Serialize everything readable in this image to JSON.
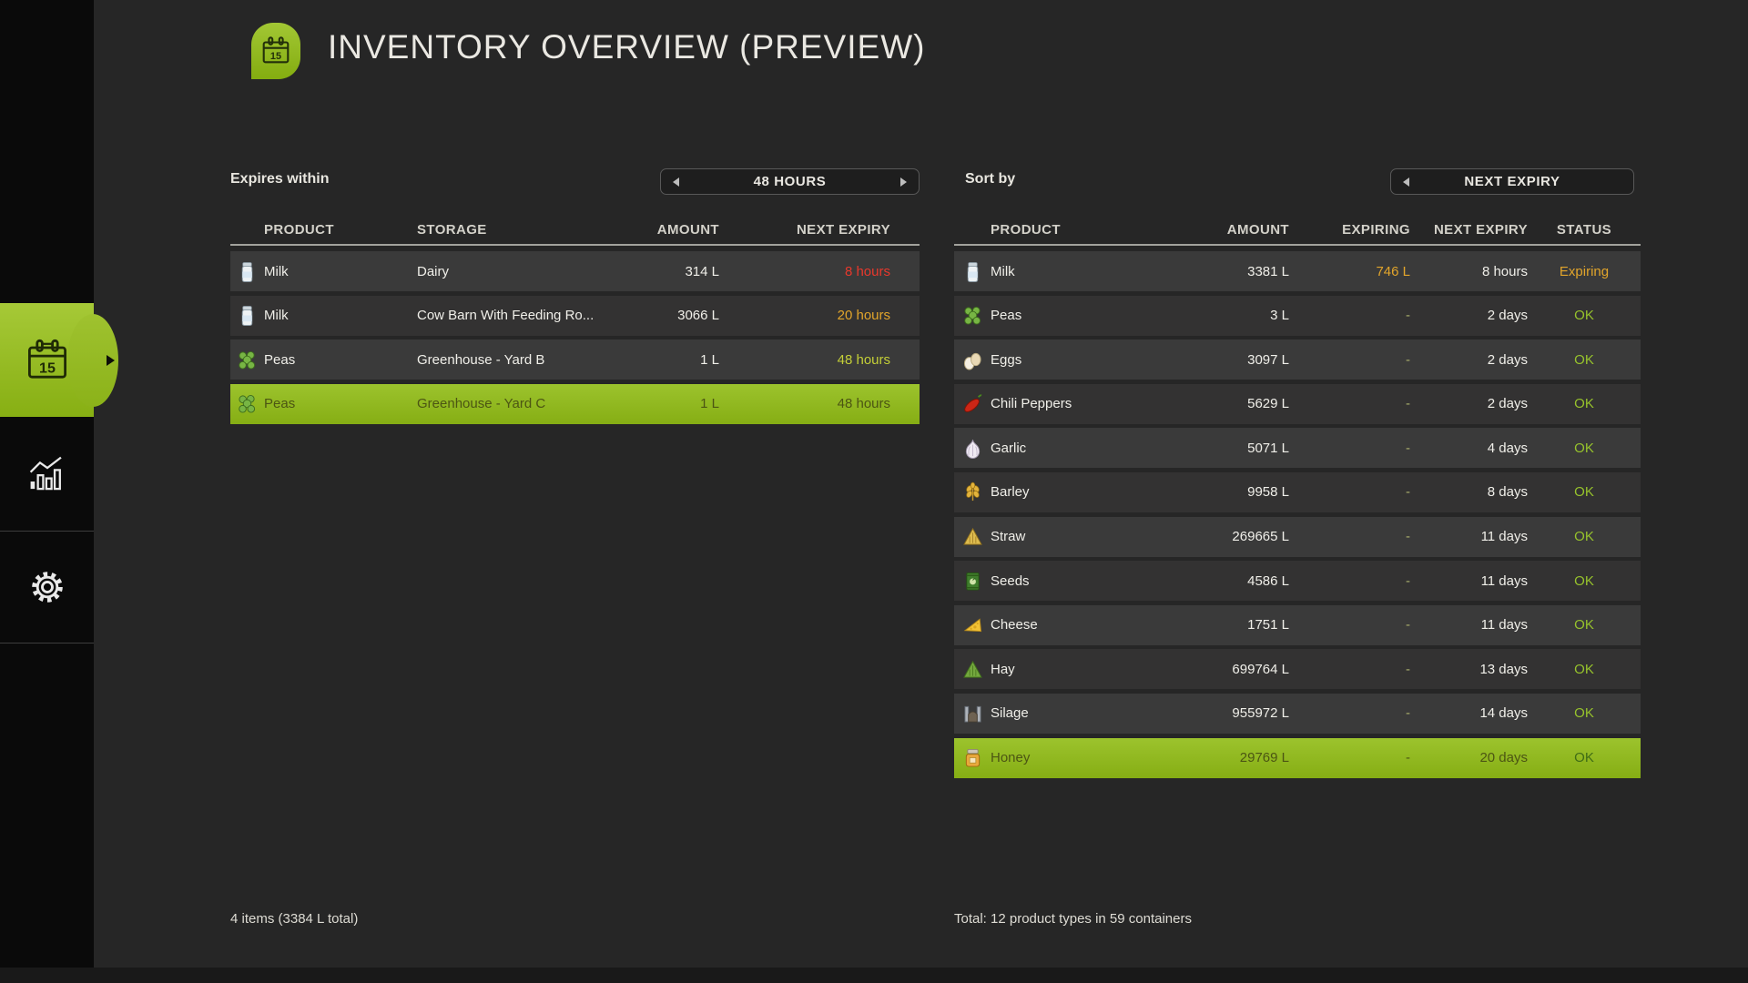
{
  "colors": {
    "bg": "#262626",
    "sidebar_bg": "#0a0a0a",
    "accent": "#8fb81e",
    "accent_light": "#a6c937",
    "red": "#e8382c",
    "orange": "#e2a52b",
    "warn": "#c4cf37",
    "ok": "#97c32c",
    "dash": "#a9ad6c",
    "selected_text": "#4c5513",
    "selected_ok": "#3f6c15"
  },
  "header": {
    "title": "INVENTORY OVERVIEW (PREVIEW)",
    "icon": "calendar-icon"
  },
  "sidebar": {
    "items": [
      {
        "id": "inventory",
        "icon": "calendar-icon",
        "selected": true
      },
      {
        "id": "statistics",
        "icon": "bar-chart-icon",
        "selected": false
      },
      {
        "id": "settings",
        "icon": "gear-icon",
        "selected": false
      }
    ]
  },
  "left_panel": {
    "filter_label": "Expires within",
    "selector_value": "48 HOURS",
    "columns": [
      "PRODUCT",
      "STORAGE",
      "AMOUNT",
      "NEXT EXPIRY"
    ],
    "rows": [
      {
        "icon": "milk-icon",
        "product": "Milk",
        "storage": "Dairy",
        "amount": "314 L",
        "next_expiry": "8 hours",
        "expiry_color": "red",
        "selected": false
      },
      {
        "icon": "milk-icon",
        "product": "Milk",
        "storage": "Cow Barn With Feeding Ro...",
        "amount": "3066 L",
        "next_expiry": "20 hours",
        "expiry_color": "orange",
        "selected": false
      },
      {
        "icon": "peas-icon",
        "product": "Peas",
        "storage": "Greenhouse - Yard B",
        "amount": "1 L",
        "next_expiry": "48 hours",
        "expiry_color": "warn",
        "selected": false
      },
      {
        "icon": "peas-icon",
        "product": "Peas",
        "storage": "Greenhouse - Yard C",
        "amount": "1 L",
        "next_expiry": "48 hours",
        "expiry_color": "warn",
        "selected": true
      }
    ],
    "footer": "4 items (3384 L total)"
  },
  "right_panel": {
    "sort_label": "Sort by",
    "selector_value": "NEXT EXPIRY",
    "columns": [
      "PRODUCT",
      "AMOUNT",
      "EXPIRING",
      "NEXT EXPIRY",
      "STATUS"
    ],
    "rows": [
      {
        "icon": "milk-icon",
        "product": "Milk",
        "amount": "3381 L",
        "expiring": "746 L",
        "expiring_color": "orange",
        "next_expiry": "8 hours",
        "status": "Expiring",
        "status_color": "orange",
        "selected": false
      },
      {
        "icon": "peas-icon",
        "product": "Peas",
        "amount": "3 L",
        "expiring": "-",
        "expiring_color": "dash",
        "next_expiry": "2 days",
        "status": "OK",
        "status_color": "ok",
        "selected": false
      },
      {
        "icon": "eggs-icon",
        "product": "Eggs",
        "amount": "3097 L",
        "expiring": "-",
        "expiring_color": "dash",
        "next_expiry": "2 days",
        "status": "OK",
        "status_color": "ok",
        "selected": false
      },
      {
        "icon": "chili-icon",
        "product": "Chili Peppers",
        "amount": "5629 L",
        "expiring": "-",
        "expiring_color": "dash",
        "next_expiry": "2 days",
        "status": "OK",
        "status_color": "ok",
        "selected": false
      },
      {
        "icon": "garlic-icon",
        "product": "Garlic",
        "amount": "5071 L",
        "expiring": "-",
        "expiring_color": "dash",
        "next_expiry": "4 days",
        "status": "OK",
        "status_color": "ok",
        "selected": false
      },
      {
        "icon": "barley-icon",
        "product": "Barley",
        "amount": "9958 L",
        "expiring": "-",
        "expiring_color": "dash",
        "next_expiry": "8 days",
        "status": "OK",
        "status_color": "ok",
        "selected": false
      },
      {
        "icon": "straw-icon",
        "product": "Straw",
        "amount": "269665 L",
        "expiring": "-",
        "expiring_color": "dash",
        "next_expiry": "11 days",
        "status": "OK",
        "status_color": "ok",
        "selected": false
      },
      {
        "icon": "seeds-icon",
        "product": "Seeds",
        "amount": "4586 L",
        "expiring": "-",
        "expiring_color": "dash",
        "next_expiry": "11 days",
        "status": "OK",
        "status_color": "ok",
        "selected": false
      },
      {
        "icon": "cheese-icon",
        "product": "Cheese",
        "amount": "1751 L",
        "expiring": "-",
        "expiring_color": "dash",
        "next_expiry": "11 days",
        "status": "OK",
        "status_color": "ok",
        "selected": false
      },
      {
        "icon": "hay-icon",
        "product": "Hay",
        "amount": "699764 L",
        "expiring": "-",
        "expiring_color": "dash",
        "next_expiry": "13 days",
        "status": "OK",
        "status_color": "ok",
        "selected": false
      },
      {
        "icon": "silage-icon",
        "product": "Silage",
        "amount": "955972 L",
        "expiring": "-",
        "expiring_color": "dash",
        "next_expiry": "14 days",
        "status": "OK",
        "status_color": "ok",
        "selected": false
      },
      {
        "icon": "honey-icon",
        "product": "Honey",
        "amount": "29769 L",
        "expiring": "-",
        "expiring_color": "dash",
        "next_expiry": "20 days",
        "status": "OK",
        "status_color": "ok",
        "selected": true
      }
    ],
    "footer": "Total: 12 product types in 59 containers"
  }
}
